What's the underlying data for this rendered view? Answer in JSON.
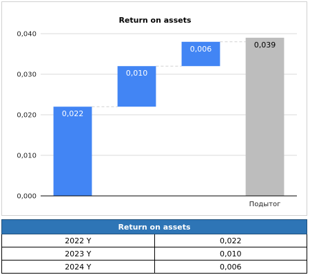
{
  "chart_data": {
    "type": "waterfall",
    "title": "Return on assets",
    "categories": [
      "2022 Y",
      "2023 Y",
      "2024 Y",
      "Подытог"
    ],
    "tick_labels": [
      "",
      "",
      "",
      "Подытог"
    ],
    "values": [
      0.022,
      0.01,
      0.006,
      0.039
    ],
    "value_labels": [
      "0,022",
      "0,010",
      "0,006",
      "0,039"
    ],
    "is_total": [
      false,
      false,
      false,
      true
    ],
    "ylim": [
      0,
      0.04
    ],
    "yticks": [
      0,
      0.01,
      0.02,
      0.03,
      0.04
    ],
    "ytick_labels": [
      "0,000",
      "0,010",
      "0,020",
      "0,030",
      "0,040"
    ],
    "grid": true,
    "colors": {
      "increase": "#4285f4",
      "total": "#bdbdbd",
      "grid": "#d9d9d9",
      "connector": "#d0d0d0"
    }
  },
  "table": {
    "header": "Return on assets",
    "rows": [
      {
        "label": "2022 Y",
        "value": "0,022"
      },
      {
        "label": "2023 Y",
        "value": "0,010"
      },
      {
        "label": "2024 Y",
        "value": "0,006"
      }
    ]
  }
}
